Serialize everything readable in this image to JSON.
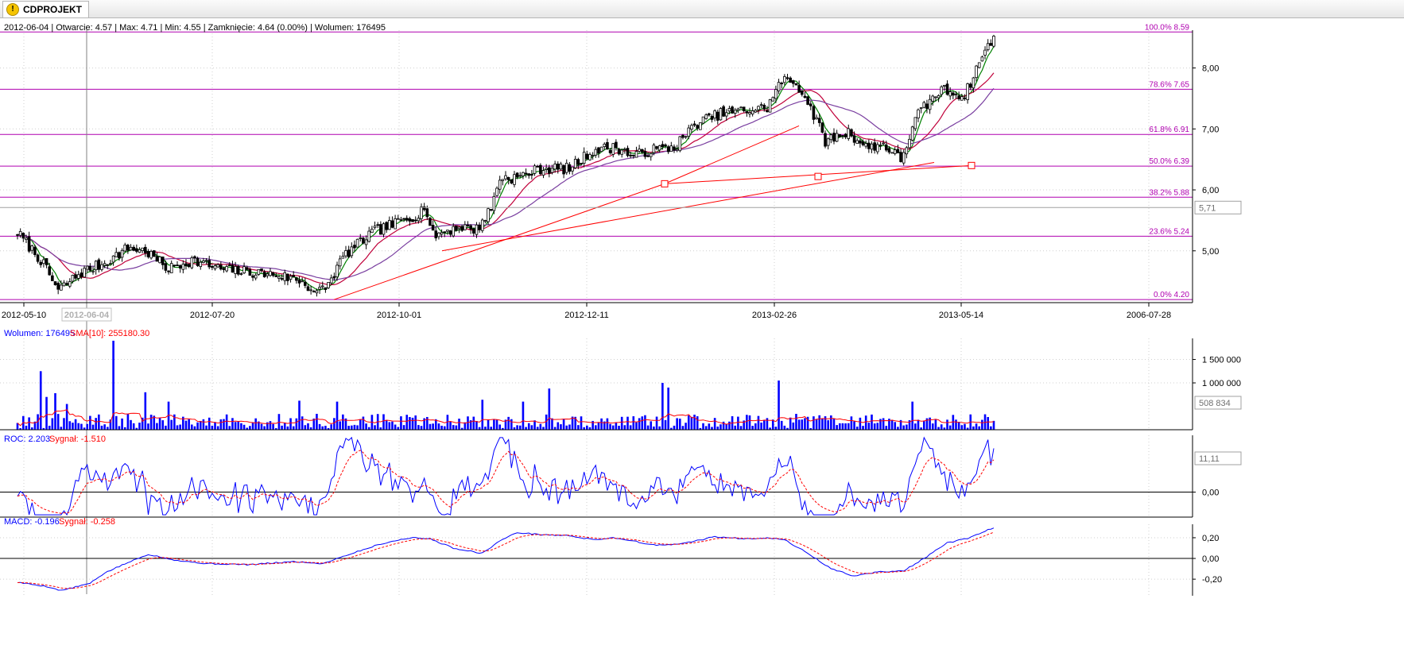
{
  "window": {
    "tab_title": "CDPROJEKT",
    "icon": "warning-icon"
  },
  "info_bar": "2012-06-04 | Otwarcie: 4.57 | Max: 4.71 | Min: 4.55 | Zamknięcie: 4.64 (0.00%)  | Wolumen: 176495",
  "crosshair_date_label": "2012-06-04",
  "chart_data": [
    {
      "type": "candlestick",
      "id": "price",
      "x_tick_labels": [
        "2012-05-10",
        "2012-07-20",
        "2012-10-01",
        "2012-12-11",
        "2013-02-26",
        "2013-05-14",
        "2006-07-28"
      ],
      "y_ticks": [
        5.0,
        6.0,
        7.0,
        8.0
      ],
      "y_tick_labels": [
        "5,00",
        "6,00",
        "7,00",
        "8,00"
      ],
      "ylim": [
        4.15,
        8.62
      ],
      "current_value_label": "5,71",
      "fibonacci_levels": [
        {
          "pct": "100.0%",
          "value": 8.59,
          "label": "100.0% 8.59"
        },
        {
          "pct": "78.6%",
          "value": 7.65,
          "label": "78.6% 7.65"
        },
        {
          "pct": "61.8%",
          "value": 6.91,
          "label": "61.8% 6.91"
        },
        {
          "pct": "50.0%",
          "value": 6.39,
          "label": "50.0% 6.39"
        },
        {
          "pct": "38.2%",
          "value": 5.88,
          "label": "38.2% 5.88"
        },
        {
          "pct": "23.6%",
          "value": 5.24,
          "label": "23.6% 5.24"
        },
        {
          "pct": "0.0%",
          "value": 4.2,
          "label": "0.0% 4.20"
        }
      ],
      "close_anchors": [
        [
          0,
          5.3
        ],
        [
          8,
          4.85
        ],
        [
          14,
          4.35
        ],
        [
          22,
          4.65
        ],
        [
          30,
          4.8
        ],
        [
          38,
          5.05
        ],
        [
          44,
          5.0
        ],
        [
          52,
          4.7
        ],
        [
          60,
          4.85
        ],
        [
          70,
          4.7
        ],
        [
          80,
          4.65
        ],
        [
          90,
          4.6
        ],
        [
          98,
          4.5
        ],
        [
          103,
          4.3
        ],
        [
          107,
          4.45
        ],
        [
          112,
          4.9
        ],
        [
          122,
          5.3
        ],
        [
          130,
          5.45
        ],
        [
          138,
          5.6
        ],
        [
          140,
          5.75
        ],
        [
          143,
          5.25
        ],
        [
          152,
          5.4
        ],
        [
          158,
          5.35
        ],
        [
          163,
          5.7
        ],
        [
          166,
          6.2
        ],
        [
          172,
          6.2
        ],
        [
          180,
          6.35
        ],
        [
          190,
          6.35
        ],
        [
          198,
          6.65
        ],
        [
          206,
          6.7
        ],
        [
          212,
          6.55
        ],
        [
          218,
          6.65
        ],
        [
          226,
          6.7
        ],
        [
          234,
          7.1
        ],
        [
          242,
          7.25
        ],
        [
          250,
          7.3
        ],
        [
          258,
          7.35
        ],
        [
          263,
          7.8
        ],
        [
          268,
          7.75
        ],
        [
          272,
          7.45
        ],
        [
          278,
          6.8
        ],
        [
          286,
          6.95
        ],
        [
          292,
          6.7
        ],
        [
          298,
          6.75
        ],
        [
          304,
          6.5
        ],
        [
          310,
          7.25
        ],
        [
          318,
          7.65
        ],
        [
          326,
          7.55
        ],
        [
          332,
          8.2
        ],
        [
          336,
          8.5
        ]
      ],
      "trend_lines": [
        {
          "from": [
            "2012-08",
            4.2
          ],
          "to": [
            "2012-12",
            6.1
          ],
          "color": "#ff0000"
        },
        {
          "from": [
            "2012-10",
            5.0
          ],
          "to": [
            "2013-04",
            6.45
          ],
          "color": "#ff0000"
        },
        {
          "from": [
            "2012-12",
            6.1
          ],
          "to": [
            "2013-05",
            6.4
          ],
          "color": "#ff0000"
        },
        {
          "from": [
            "2012-12",
            6.1
          ],
          "to": [
            "2013-02",
            7.05
          ],
          "color": "#ff0000"
        }
      ],
      "moving_averages": [
        {
          "periods": 5,
          "color": "#008000"
        },
        {
          "periods": 15,
          "color": "#c0003a"
        },
        {
          "periods": 30,
          "color": "#7a3fa0"
        }
      ]
    },
    {
      "type": "bar",
      "id": "volume",
      "legend": [
        {
          "text": "Wolumen: 176495",
          "color": "#0000ff"
        },
        {
          "text": "SMA[10]: 255180.30",
          "color": "#ff0000"
        }
      ],
      "y_ticks": [
        1000000,
        1500000
      ],
      "y_tick_labels": [
        "1 000 000",
        "1 500 000"
      ],
      "ylim": [
        0,
        1950000
      ],
      "current_value_label": "508 834",
      "spikes": [
        {
          "i": 8,
          "v": 1250000
        },
        {
          "i": 10,
          "v": 700000
        },
        {
          "i": 13,
          "v": 780000
        },
        {
          "i": 17,
          "v": 550000
        },
        {
          "i": 33,
          "v": 1900000
        },
        {
          "i": 44,
          "v": 800000
        },
        {
          "i": 52,
          "v": 600000
        },
        {
          "i": 97,
          "v": 620000
        },
        {
          "i": 110,
          "v": 600000
        },
        {
          "i": 160,
          "v": 640000
        },
        {
          "i": 174,
          "v": 600000
        },
        {
          "i": 183,
          "v": 880000
        },
        {
          "i": 222,
          "v": 1000000
        },
        {
          "i": 224,
          "v": 900000
        },
        {
          "i": 262,
          "v": 1050000
        },
        {
          "i": 308,
          "v": 600000
        }
      ]
    },
    {
      "type": "line",
      "id": "roc",
      "legend": [
        {
          "text": "ROC: 2.203",
          "color": "#0000ff"
        },
        {
          "text": "Sygnał: -1.510",
          "color": "#ff0000"
        }
      ],
      "y_ticks": [
        0
      ],
      "y_tick_labels": [
        "0,00"
      ],
      "ylim": [
        -5.5,
        12.5
      ],
      "current_value_label": "11,11",
      "series": [
        {
          "name": "ROC",
          "color": "#0000ff"
        },
        {
          "name": "Sygnał",
          "color": "#ff0000",
          "dashed": true
        }
      ]
    },
    {
      "type": "line",
      "id": "macd",
      "legend": [
        {
          "text": "MACD: -0.196",
          "color": "#0000ff"
        },
        {
          "text": "Sygnał: -0.258",
          "color": "#ff0000"
        }
      ],
      "y_ticks": [
        -0.2,
        0,
        0.2
      ],
      "y_tick_labels": [
        "-0,20",
        "0,00",
        "0,20"
      ],
      "ylim": [
        -0.36,
        0.33
      ],
      "macd_anchors": [
        [
          0,
          -0.23
        ],
        [
          10,
          -0.27
        ],
        [
          15,
          -0.31
        ],
        [
          25,
          -0.24
        ],
        [
          30,
          -0.14
        ],
        [
          38,
          -0.04
        ],
        [
          45,
          0.04
        ],
        [
          55,
          -0.02
        ],
        [
          65,
          -0.05
        ],
        [
          80,
          -0.06
        ],
        [
          95,
          -0.03
        ],
        [
          105,
          -0.05
        ],
        [
          112,
          0.02
        ],
        [
          125,
          0.14
        ],
        [
          135,
          0.2
        ],
        [
          142,
          0.19
        ],
        [
          150,
          0.1
        ],
        [
          160,
          0.05
        ],
        [
          166,
          0.17
        ],
        [
          172,
          0.25
        ],
        [
          180,
          0.23
        ],
        [
          190,
          0.22
        ],
        [
          198,
          0.18
        ],
        [
          205,
          0.2
        ],
        [
          212,
          0.17
        ],
        [
          218,
          0.13
        ],
        [
          225,
          0.13
        ],
        [
          232,
          0.16
        ],
        [
          240,
          0.21
        ],
        [
          250,
          0.19
        ],
        [
          258,
          0.2
        ],
        [
          264,
          0.18
        ],
        [
          272,
          0.05
        ],
        [
          280,
          -0.1
        ],
        [
          288,
          -0.17
        ],
        [
          296,
          -0.13
        ],
        [
          305,
          -0.12
        ],
        [
          312,
          0.0
        ],
        [
          320,
          0.15
        ],
        [
          328,
          0.2
        ],
        [
          336,
          0.3
        ]
      ],
      "series": [
        {
          "name": "MACD",
          "color": "#0000ff"
        },
        {
          "name": "Sygnał",
          "color": "#ff0000",
          "dashed": true
        }
      ]
    }
  ]
}
